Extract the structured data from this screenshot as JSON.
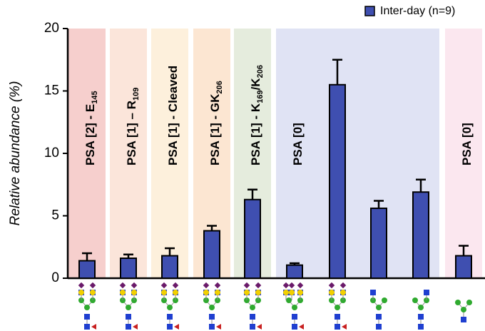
{
  "chart_data": {
    "type": "bar",
    "categories": [
      null,
      null,
      null,
      null,
      null,
      null,
      null,
      null,
      null,
      null
    ],
    "series": [
      {
        "name": "Inter-day (n=9)",
        "color": "#3f4fb0",
        "values": [
          1.4,
          1.6,
          1.8,
          3.8,
          6.3,
          1.05,
          15.5,
          5.6,
          6.9,
          1.8
        ],
        "errors": [
          0.6,
          0.3,
          0.6,
          0.4,
          0.8,
          0.15,
          2.0,
          0.6,
          1.0,
          0.8
        ]
      }
    ],
    "ylabel": "Relative abundance (%)",
    "ylim": [
      0,
      20
    ],
    "yticks": [
      0,
      5,
      10,
      15,
      20
    ],
    "legend": "top-right",
    "bands": [
      {
        "label": [
          "PSA [2] - E",
          "145"
        ],
        "color": "#f6cfcd"
      },
      {
        "label": [
          "PSA [1] – R",
          "109"
        ],
        "color": "#fbe5da"
      },
      {
        "label": [
          "PSA [1] - Cleaved"
        ],
        "color": "#fdf0dc"
      },
      {
        "label": [
          "PSA [1] - GK",
          "206"
        ],
        "color": "#fce6d2"
      },
      {
        "label": [
          "PSA [1] - K",
          "169",
          "/K",
          "206"
        ],
        "color": "#e5ecdd"
      },
      {
        "label": [
          "PSA [0]"
        ],
        "color": "#e0e3f4"
      },
      {
        "label": [
          "PSA [0]"
        ],
        "color": "#fbe7ef"
      }
    ]
  }
}
